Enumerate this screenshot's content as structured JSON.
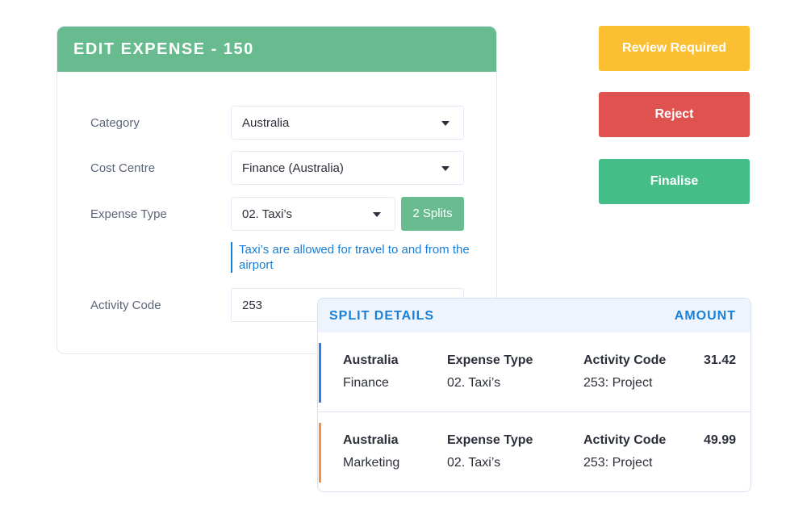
{
  "form": {
    "title": "EDIT EXPENSE - 150",
    "fields": [
      {
        "label": "Category",
        "value": "Australia"
      },
      {
        "label": "Cost Centre",
        "value": "Finance (Australia)"
      },
      {
        "label": "Expense Type",
        "value": "02. Taxi’s"
      },
      {
        "label": "Activity Code",
        "value": "253"
      }
    ],
    "splits_button": "2 Splits",
    "hint": "Taxi’s are allowed for travel to and from the airport"
  },
  "actions": {
    "review": "Review Required",
    "reject": "Reject",
    "finalise": "Finalise"
  },
  "colors": {
    "header_green": "#67bb8e",
    "review": "#fbbf33",
    "reject": "#e0524f",
    "finalise": "#44bd87",
    "accent_blue": "#1a7fd6"
  },
  "split_details": {
    "title": "SPLIT DETAILS",
    "amount_header": "AMOUNT",
    "rows": [
      {
        "category": "Australia",
        "cost_centre": "Finance",
        "type_label": "Expense Type",
        "type": "02. Taxi’s",
        "code_label": "Activity Code",
        "code": "253: Project",
        "amount": "31.42",
        "color": "#2f80e0"
      },
      {
        "category": "Australia",
        "cost_centre": "Marketing",
        "type_label": "Expense Type",
        "type": "02. Taxi’s",
        "code_label": "Activity Code",
        "code": "253: Project",
        "amount": "49.99",
        "color": "#f0924a"
      }
    ]
  }
}
